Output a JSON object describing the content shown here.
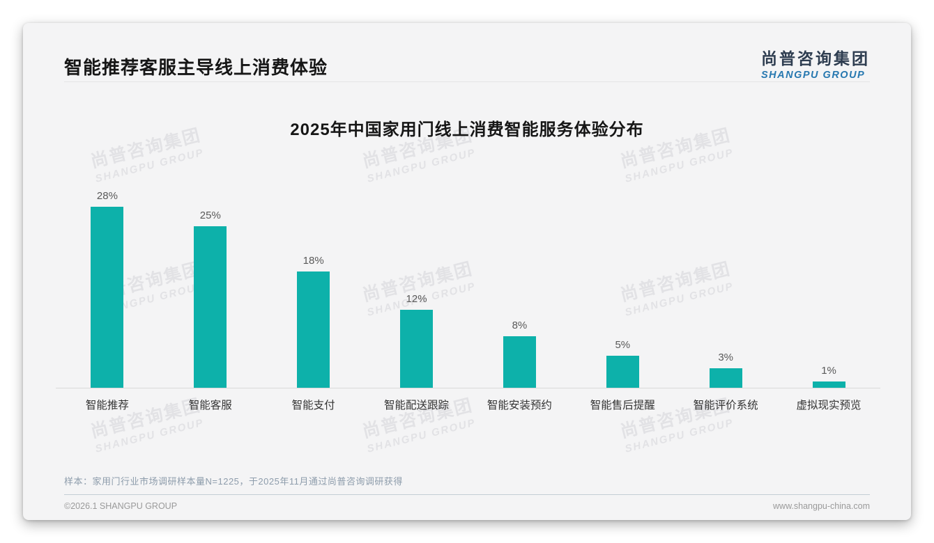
{
  "page": {
    "header": {
      "title": "智能推荐客服主导线上消费体验",
      "logo": {
        "cn": "尚普咨询集团",
        "en": "SHANGPU GROUP"
      }
    },
    "watermark": {
      "cn": "尚普咨询集团",
      "en": "SHANGPU GROUP"
    },
    "footnote": "样本：家用门行业市场调研样本量N=1225，于2025年11月通过尚普咨询调研获得",
    "footer": {
      "copyright": "©2026.1 SHANGPU GROUP",
      "website": "www.shangpu-china.com"
    }
  },
  "chart_data": {
    "type": "bar",
    "title": "2025年中国家用门线上消费智能服务体验分布",
    "categories": [
      "智能推荐",
      "智能客服",
      "智能支付",
      "智能配送跟踪",
      "智能安装预约",
      "智能售后提醒",
      "智能评价系统",
      "虚拟现实预览"
    ],
    "values": [
      28,
      25,
      18,
      12,
      8,
      5,
      3,
      1
    ],
    "value_labels": [
      "28%",
      "25%",
      "18%",
      "12%",
      "8%",
      "5%",
      "3%",
      "1%"
    ],
    "unit": "%",
    "xlabel": "",
    "ylabel": "",
    "ylim": [
      0,
      30
    ],
    "grid": false,
    "legend": "none",
    "bar_color": "#0db1aa"
  },
  "colors": {
    "accent_teal": "#0db1aa",
    "logo_navy": "#2e3d50",
    "logo_blue": "#2778b0",
    "card_background": "#f4f4f5",
    "value_label": "#595959",
    "category_label": "#333333",
    "footnote_text": "#8d9cab",
    "footer_text": "#9a9a9a",
    "axis_line": "#d9d9d9"
  }
}
